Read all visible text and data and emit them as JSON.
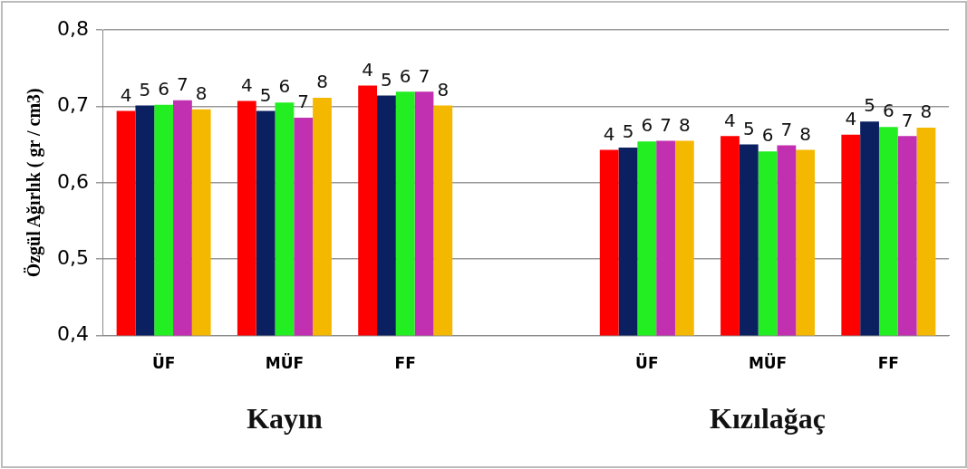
{
  "chart_data": {
    "type": "bar",
    "ylabel": "Özgül Ağırlık ( gr / cm3)",
    "categories": [
      "ÜF",
      "MÜF",
      "FF",
      null,
      "ÜF",
      "MÜF",
      "FF"
    ],
    "series": [
      {
        "name": "4",
        "color": "#ff0000",
        "values": [
          0.694,
          0.707,
          0.727,
          null,
          0.643,
          0.661,
          0.663
        ]
      },
      {
        "name": "5",
        "color": "#0a2060",
        "values": [
          0.701,
          0.694,
          0.714,
          null,
          0.646,
          0.65,
          0.68
        ]
      },
      {
        "name": "6",
        "color": "#22ee22",
        "values": [
          0.702,
          0.705,
          0.719,
          null,
          0.654,
          0.641,
          0.673
        ]
      },
      {
        "name": "7",
        "color": "#c030b0",
        "values": [
          0.708,
          0.685,
          0.719,
          null,
          0.655,
          0.649,
          0.661
        ]
      },
      {
        "name": "8",
        "color": "#f5b800",
        "values": [
          0.696,
          0.711,
          0.701,
          null,
          0.655,
          0.643,
          0.672
        ]
      }
    ],
    "ylim": [
      0.4,
      0.8
    ],
    "yticks": [
      {
        "value": 0.4,
        "label": "0,4"
      },
      {
        "value": 0.5,
        "label": "0,5"
      },
      {
        "value": 0.6,
        "label": "0,6"
      },
      {
        "value": 0.7,
        "label": "0,7"
      },
      {
        "value": 0.8,
        "label": "0,8"
      }
    ],
    "grid": "y",
    "legend": false,
    "annotations": [
      "Kayın",
      "Kızılağaç"
    ]
  }
}
